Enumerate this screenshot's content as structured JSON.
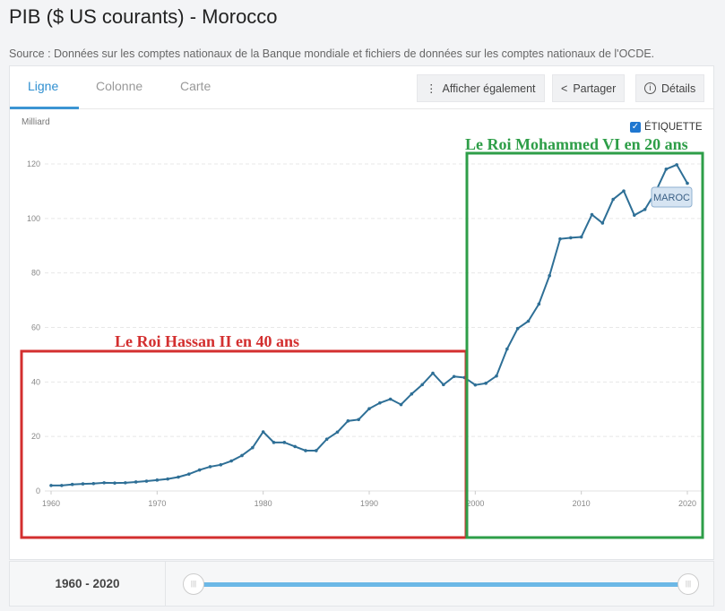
{
  "header": {
    "title": "PIB ($ US courants) - Morocco",
    "source": "Source : Données sur les comptes nationaux de la Banque mondiale et fichiers de données sur les comptes nationaux de l'OCDE."
  },
  "tabs": [
    {
      "label": "Ligne",
      "active": true
    },
    {
      "label": "Colonne"
    },
    {
      "label": "Carte"
    }
  ],
  "buttons": {
    "also": "Afficher également",
    "share": "Partager",
    "details": "Détails"
  },
  "label_toggle": {
    "label": "ÉTIQUETTE",
    "checked": true
  },
  "annotations": {
    "hassan": "Le Roi Hassan II en 40 ans",
    "mohammed": "Le Roi Mohammed VI en 20 ans",
    "hassan_color": "#d32f2f",
    "mohammed_color": "#2e9e48"
  },
  "range": {
    "label": "1960 - 2020",
    "start": 1960,
    "end": 2020
  },
  "chart_data": {
    "type": "line",
    "title": "PIB ($ US courants) - Morocco",
    "ylabel": "Milliard",
    "xlim": [
      1960,
      2020
    ],
    "ylim": [
      0,
      120
    ],
    "x_ticks": [
      "1960",
      "1970",
      "1980",
      "1990",
      "2000",
      "2010",
      "2020"
    ],
    "y_ticks": [
      "0",
      "20",
      "40",
      "60",
      "80",
      "100",
      "120"
    ],
    "grid": true,
    "series": [
      {
        "name": "MAROC",
        "color": "#2e6f96",
        "x": [
          1960,
          1961,
          1962,
          1963,
          1964,
          1965,
          1966,
          1967,
          1968,
          1969,
          1970,
          1971,
          1972,
          1973,
          1974,
          1975,
          1976,
          1977,
          1978,
          1979,
          1980,
          1981,
          1982,
          1983,
          1984,
          1985,
          1986,
          1987,
          1988,
          1989,
          1990,
          1991,
          1992,
          1993,
          1994,
          1995,
          1996,
          1997,
          1998,
          1999,
          2000,
          2001,
          2002,
          2003,
          2004,
          2005,
          2006,
          2007,
          2008,
          2009,
          2010,
          2011,
          2012,
          2013,
          2014,
          2015,
          2016,
          2017,
          2018,
          2019,
          2020
        ],
        "values": [
          2.0,
          2.0,
          2.4,
          2.6,
          2.7,
          3.0,
          2.9,
          3.0,
          3.3,
          3.6,
          4.0,
          4.4,
          5.1,
          6.2,
          7.7,
          8.9,
          9.6,
          11.0,
          13.0,
          15.9,
          21.7,
          17.8,
          17.8,
          16.3,
          14.8,
          14.8,
          19.0,
          21.6,
          25.7,
          26.2,
          30.2,
          32.3,
          33.7,
          31.7,
          35.6,
          39.0,
          43.2,
          39.0,
          42.0,
          41.6,
          38.9,
          39.5,
          42.2,
          52.1,
          59.6,
          62.3,
          68.6,
          79.0,
          92.5,
          92.9,
          93.2,
          101.4,
          98.3,
          107.0,
          110.1,
          101.2,
          103.3,
          109.7,
          118.1,
          119.7,
          112.9
        ]
      }
    ]
  }
}
